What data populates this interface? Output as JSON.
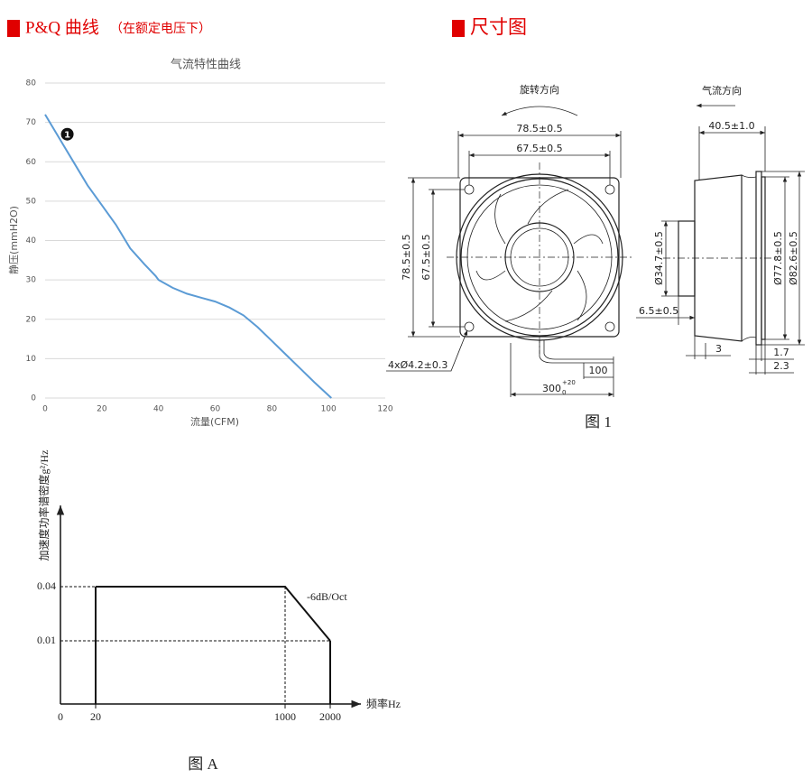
{
  "sections": {
    "pq": {
      "heading": "P&Q 曲线",
      "note": "（在额定电压下）"
    },
    "dims": {
      "heading": "尺寸图"
    }
  },
  "chart_data": [
    {
      "type": "line",
      "title": "气流特性曲线",
      "x_label": "流量(CFM)",
      "y_label": "静压(mmH2O)",
      "x": [
        0,
        5,
        10,
        15,
        20,
        25,
        30,
        35,
        39,
        40,
        45,
        50,
        55,
        60,
        65,
        70,
        75,
        80,
        85,
        90,
        95,
        101
      ],
      "series": [
        {
          "color": "#5b9bd5",
          "values": [
            72,
            66,
            60,
            54,
            49,
            44,
            38,
            34,
            31,
            30,
            28,
            26.5,
            25.5,
            24.5,
            23,
            21,
            18,
            14.5,
            11,
            7.5,
            4,
            0
          ]
        }
      ],
      "xlim": [
        0,
        120
      ],
      "xticks": [
        0,
        20,
        40,
        60,
        80,
        100,
        120
      ],
      "ylim": [
        0,
        80
      ],
      "yticks": [
        0,
        10,
        20,
        30,
        40,
        50,
        60,
        70,
        80
      ],
      "grid": true,
      "annotations": [
        {
          "text": "1",
          "x": 4,
          "y": 67
        }
      ]
    },
    {
      "type": "spectrum",
      "x_label": "频率Hz",
      "y_label": "加速度功率谱密度g²/Hz",
      "x": [
        0,
        20,
        1000,
        2000
      ],
      "values": [
        null,
        0.04,
        0.04,
        0.01
      ],
      "yticks": [
        0.01,
        0.04
      ],
      "annotation": "-6dB/Oct",
      "caption": "图 A"
    }
  ],
  "drawing": {
    "rotation": "旋转方向",
    "airflow": "气流方向",
    "width_outer": "78.5±0.5",
    "width_holes": "67.5±0.5",
    "height_outer": "78.5±0.5",
    "height_holes": "67.5±0.5",
    "holes": "4xØ4.2±0.3",
    "lead_strip": "100",
    "lead_length": "300",
    "lead_tol_upper": "+20",
    "lead_tol_lower": "0",
    "depth": "40.5±1.0",
    "hub_dia": "Ø34.7±0.5",
    "body_dia": "Ø77.8±0.5",
    "flange_dia": "Ø82.6±0.5",
    "hub_depth": "6.5±0.5",
    "step": "3",
    "flange_thk": "1.7",
    "flange_edge": "2.3",
    "caption": "图 1"
  }
}
